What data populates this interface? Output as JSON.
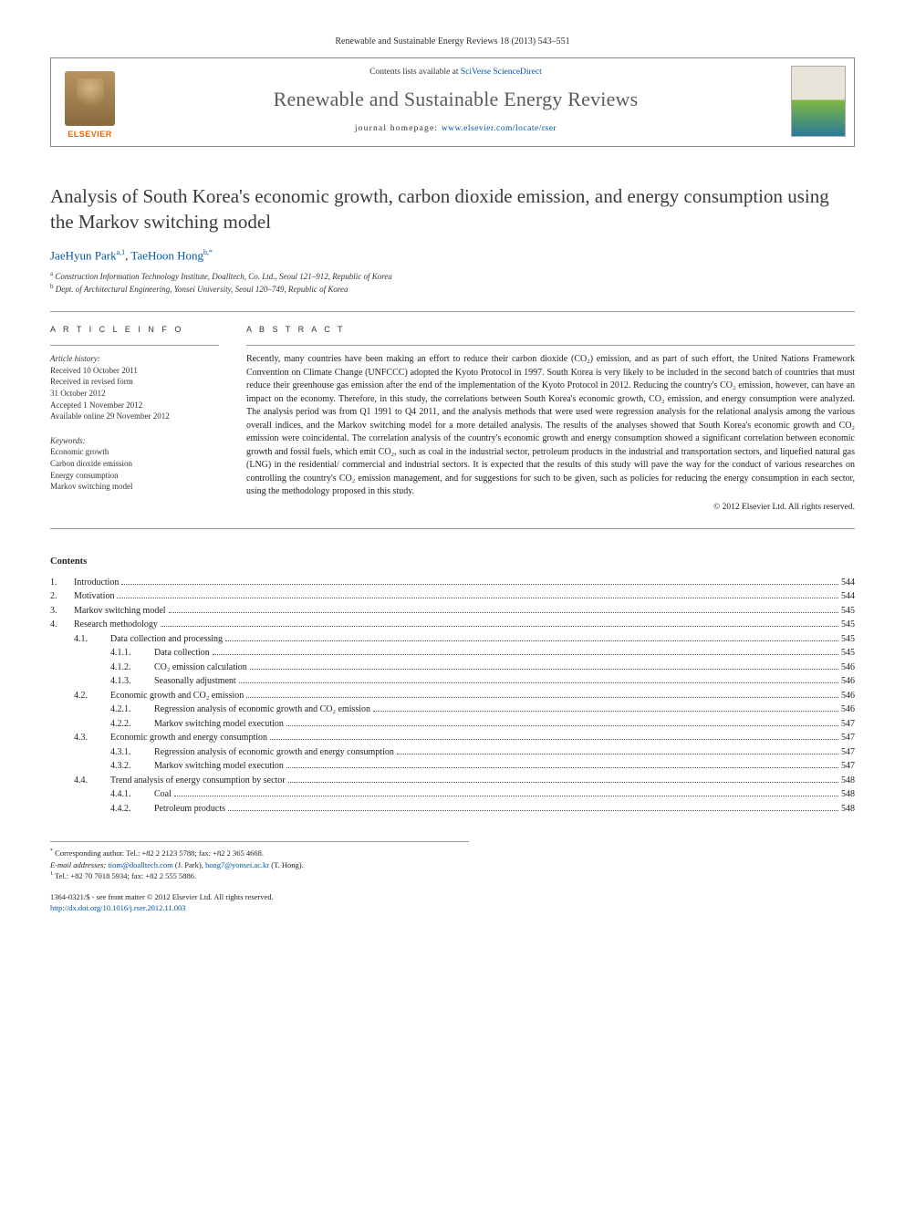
{
  "journal_ref": "Renewable and Sustainable Energy Reviews 18 (2013) 543–551",
  "header": {
    "contents_prefix": "Contents lists available at ",
    "contents_link": "SciVerse ScienceDirect",
    "journal_title": "Renewable and Sustainable Energy Reviews",
    "homepage_prefix": "journal homepage: ",
    "homepage_link": "www.elsevier.com/locate/rser",
    "publisher_label": "ELSEVIER"
  },
  "title": "Analysis of South Korea's economic growth, carbon dioxide emission, and energy consumption using the Markov switching model",
  "authors": {
    "a1_name": "JaeHyun Park",
    "a1_sup": "a,1",
    "a2_name": "TaeHoon Hong",
    "a2_sup": "b,*"
  },
  "affiliations": {
    "a": "Construction Information Technology Institute, Doalltech, Co. Ltd., Seoul 121–912, Republic of Korea",
    "b": "Dept. of Architectural Engineering, Yonsei University, Seoul 120–749, Republic of Korea"
  },
  "article_info_heading": "A R T I C L E  I N F O",
  "abstract_heading": "A B S T R A C T",
  "history": {
    "title": "Article history:",
    "received": "Received 10 October 2011",
    "revised_l1": "Received in revised form",
    "revised_l2": "31 October 2012",
    "accepted": "Accepted 1 November 2012",
    "online": "Available online 29 November 2012"
  },
  "keywords": {
    "title": "Keywords:",
    "k1": "Economic growth",
    "k2": "Carbon dioxide emission",
    "k3": "Energy consumption",
    "k4": "Markov switching model"
  },
  "abstract": "Recently, many countries have been making an effort to reduce their carbon dioxide (CO₂) emission, and as part of such effort, the United Nations Framework Convention on Climate Change (UNFCCC) adopted the Kyoto Protocol in 1997. South Korea is very likely to be included in the second batch of countries that must reduce their greenhouse gas emission after the end of the implementation of the Kyoto Protocol in 2012. Reducing the country's CO₂ emission, however, can have an impact on the economy. Therefore, in this study, the correlations between South Korea's economic growth, CO₂ emission, and energy consumption were analyzed. The analysis period was from Q1 1991 to Q4 2011, and the analysis methods that were used were regression analysis for the relational analysis among the various overall indices, and the Markov switching model for a more detailed analysis. The results of the analyses showed that South Korea's economic growth and CO₂ emission were coincidental. The correlation analysis of the country's economic growth and energy consumption showed a significant correlation between economic growth and fossil fuels, which emit CO₂, such as coal in the industrial sector, petroleum products in the industrial and transportation sectors, and liquefied natural gas (LNG) in the residential/ commercial and industrial sectors. It is expected that the results of this study will pave the way for the conduct of various researches on controlling the country's CO₂ emission management, and for suggestions for such to be given, such as policies for reducing the energy consumption in each sector, using the methodology proposed in this study.",
  "copyright": "© 2012 Elsevier Ltd. All rights reserved.",
  "contents_heading": "Contents",
  "toc": [
    {
      "level": 1,
      "num": "1.",
      "label": "Introduction",
      "page": "544"
    },
    {
      "level": 1,
      "num": "2.",
      "label": "Motivation",
      "page": "544"
    },
    {
      "level": 1,
      "num": "3.",
      "label": "Markov switching model",
      "page": "545"
    },
    {
      "level": 1,
      "num": "4.",
      "label": "Research methodology",
      "page": "545"
    },
    {
      "level": 2,
      "num": "4.1.",
      "label": "Data collection and processing",
      "page": "545"
    },
    {
      "level": 3,
      "num": "4.1.1.",
      "label": "Data collection",
      "page": "545"
    },
    {
      "level": 3,
      "num": "4.1.2.",
      "label": "CO₂ emission calculation",
      "page": "546"
    },
    {
      "level": 3,
      "num": "4.1.3.",
      "label": "Seasonally adjustment",
      "page": "546"
    },
    {
      "level": 2,
      "num": "4.2.",
      "label": "Economic growth and CO₂ emission",
      "page": "546"
    },
    {
      "level": 3,
      "num": "4.2.1.",
      "label": "Regression analysis of economic growth and CO₂ emission",
      "page": "546"
    },
    {
      "level": 3,
      "num": "4.2.2.",
      "label": "Markov switching model execution",
      "page": "547"
    },
    {
      "level": 2,
      "num": "4.3.",
      "label": "Economic growth and energy consumption",
      "page": "547"
    },
    {
      "level": 3,
      "num": "4.3.1.",
      "label": "Regression analysis of economic growth and energy consumption",
      "page": "547"
    },
    {
      "level": 3,
      "num": "4.3.2.",
      "label": "Markov switching model execution",
      "page": "547"
    },
    {
      "level": 2,
      "num": "4.4.",
      "label": "Trend analysis of energy consumption by sector",
      "page": "548"
    },
    {
      "level": 3,
      "num": "4.4.1.",
      "label": "Coal",
      "page": "548"
    },
    {
      "level": 3,
      "num": "4.4.2.",
      "label": "Petroleum products",
      "page": "548"
    }
  ],
  "footer": {
    "corr": "Corresponding author. Tel.: +82 2 2123 5788; fax: +82 2 365 4668.",
    "email_label": "E-mail addresses: ",
    "email1": "tiom@doalltech.com",
    "email1_who": " (J. Park), ",
    "email2": "hong7@yonsei.ac.kr",
    "email2_who": " (T. Hong).",
    "tel1": "Tel.: +82 70 7018 5934; fax: +82 2 555 5886."
  },
  "bottom": {
    "line1": "1364-0321/$ - see front matter © 2012 Elsevier Ltd. All rights reserved.",
    "doi": "http://dx.doi.org/10.1016/j.rser.2012.11.003"
  }
}
